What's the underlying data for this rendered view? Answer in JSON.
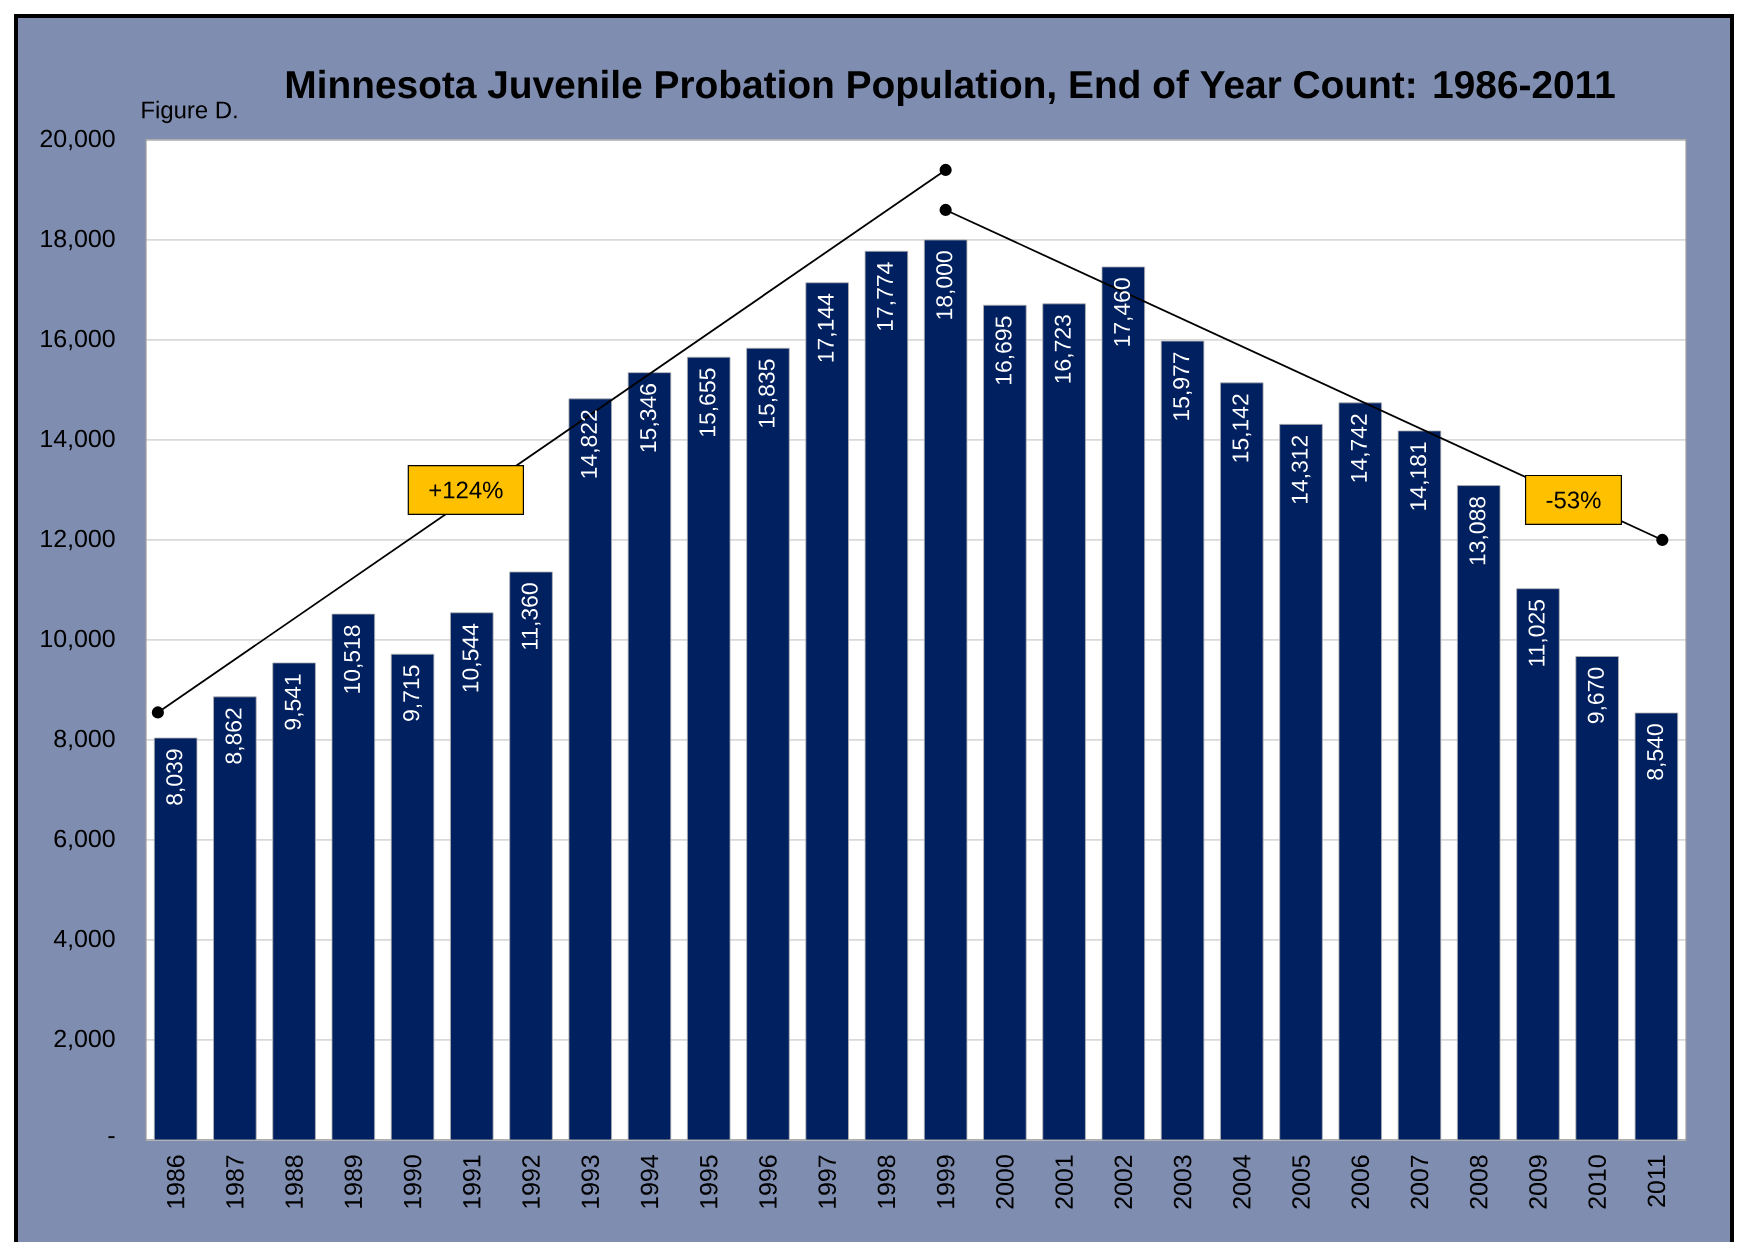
{
  "chart_data": {
    "type": "bar",
    "title": "Minnesota Juvenile Probation Population, End of Year Count: 1986-2011",
    "annotations": [
      "Figure D.",
      {
        "text": "+124%",
        "x": 1990.9,
        "y": 13000
      },
      {
        "text": "-53%",
        "x": 2009.6,
        "y": 12800
      }
    ],
    "x": [
      1986,
      1987,
      1988,
      1989,
      1990,
      1991,
      1992,
      1993,
      1994,
      1995,
      1996,
      1997,
      1998,
      1999,
      2000,
      2001,
      2002,
      2003,
      2004,
      2005,
      2006,
      2007,
      2008,
      2009,
      2010,
      2011
    ],
    "xlim": [
      1985.5,
      2011.5
    ],
    "xticks": [
      1986,
      1987,
      1988,
      1989,
      1990,
      1991,
      1992,
      1993,
      1994,
      1995,
      1996,
      1997,
      1998,
      1999,
      2000,
      2001,
      2002,
      2003,
      2004,
      2005,
      2006,
      2007,
      2008,
      2009,
      2010,
      2011
    ],
    "series": [
      {
        "color": "#002060",
        "values": [
          8039,
          8862,
          9541,
          10518,
          9715,
          10544,
          11360,
          14822,
          15346,
          15655,
          15835,
          17144,
          17774,
          18000,
          16695,
          16723,
          17460,
          15977,
          15142,
          14312,
          14742,
          14181,
          13088,
          11025,
          9670,
          8540
        ],
        "value_labels": [
          "8,039",
          "8,862",
          "9,541",
          "10,518",
          "9,715",
          "10,544",
          "11,360",
          "14,822",
          "15,346",
          "15,655",
          "15,835",
          "17,144",
          "17,774",
          "18,000",
          "16,695",
          "16,723",
          "17,460",
          "15,977",
          "15,142",
          "14,312",
          "14,742",
          "14,181",
          "13,088",
          "11,025",
          "9,670",
          "8,540"
        ]
      },
      {
        "type": "line",
        "x": [
          1985.7,
          1999
        ],
        "values": [
          8550,
          19400
        ],
        "color": "#000000",
        "marker": "circle"
      },
      {
        "type": "line",
        "x": [
          1999,
          2011.1
        ],
        "values": [
          18600,
          12000
        ],
        "color": "#000000",
        "marker": "circle"
      }
    ],
    "ylim": [
      0,
      20000
    ],
    "yticks": [
      {
        "value": 0,
        "label": "-"
      },
      {
        "value": 2000,
        "label": "2,000"
      },
      {
        "value": 4000,
        "label": "4,000"
      },
      {
        "value": 6000,
        "label": "6,000"
      },
      {
        "value": 8000,
        "label": "8,000"
      },
      {
        "value": 10000,
        "label": "10,000"
      },
      {
        "value": 12000,
        "label": "12,000"
      },
      {
        "value": 14000,
        "label": "14,000"
      },
      {
        "value": 16000,
        "label": "16,000"
      },
      {
        "value": 18000,
        "label": "18,000"
      },
      {
        "value": 20000,
        "label": "20,000"
      }
    ],
    "grid": "y"
  }
}
